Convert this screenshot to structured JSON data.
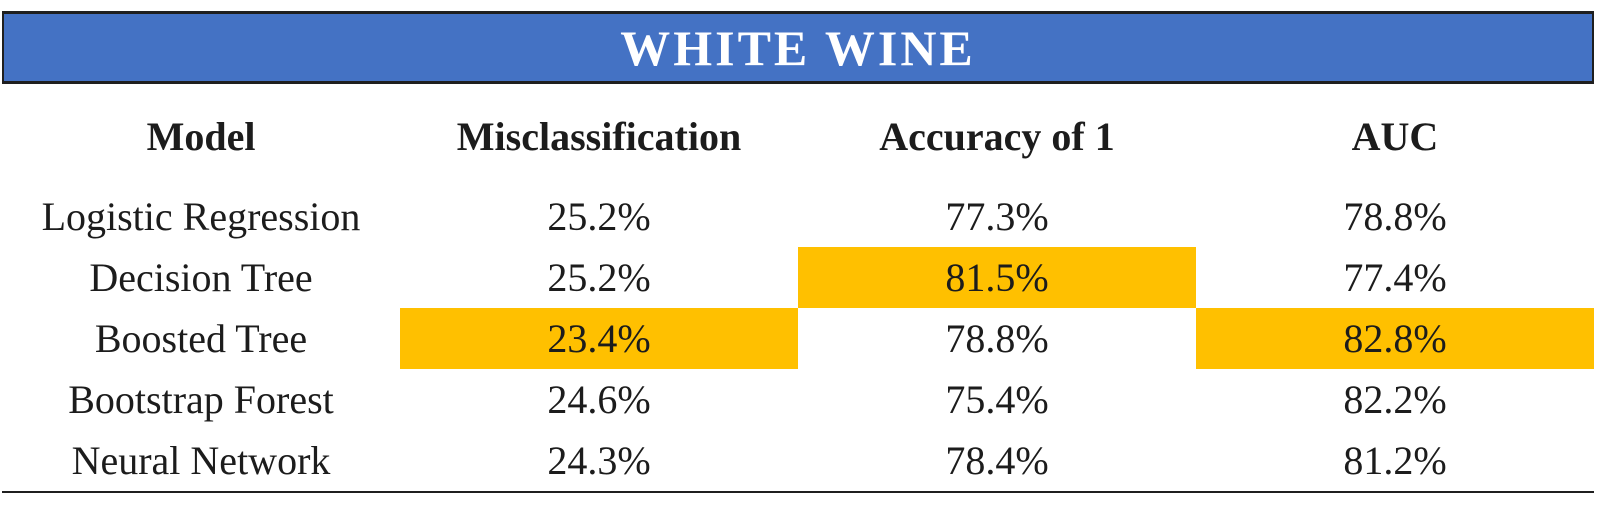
{
  "title": "WHITE WINE",
  "colors": {
    "title_bg": "#4472C4",
    "title_text": "#FFFFFF",
    "highlight": "#FFC000",
    "rule": "#1f1f1f",
    "text": "#1c1c1c"
  },
  "table": {
    "columns": [
      "Model",
      "Misclassification",
      "Accuracy of 1",
      "AUC"
    ],
    "rows": [
      {
        "model": "Logistic Regression",
        "misclassification": "25.2%",
        "accuracy_of_1": "77.3%",
        "auc": "78.8%",
        "highlights": []
      },
      {
        "model": "Decision Tree",
        "misclassification": "25.2%",
        "accuracy_of_1": "81.5%",
        "auc": "77.4%",
        "highlights": [
          "accuracy_of_1"
        ]
      },
      {
        "model": "Boosted Tree",
        "misclassification": "23.4%",
        "accuracy_of_1": "78.8%",
        "auc": "82.8%",
        "highlights": [
          "misclassification",
          "auc"
        ]
      },
      {
        "model": "Bootstrap Forest",
        "misclassification": "24.6%",
        "accuracy_of_1": "75.4%",
        "auc": "82.2%",
        "highlights": []
      },
      {
        "model": "Neural Network",
        "misclassification": "24.3%",
        "accuracy_of_1": "78.4%",
        "auc": "81.2%",
        "highlights": []
      }
    ]
  },
  "chart_data": {
    "type": "table",
    "title": "WHITE WINE",
    "columns": [
      "Model",
      "Misclassification",
      "Accuracy of 1",
      "AUC"
    ],
    "units": "percent",
    "rows": [
      [
        "Logistic Regression",
        25.2,
        77.3,
        78.8
      ],
      [
        "Decision Tree",
        25.2,
        81.5,
        77.4
      ],
      [
        "Boosted Tree",
        23.4,
        78.8,
        82.8
      ],
      [
        "Bootstrap Forest",
        24.6,
        75.4,
        82.2
      ],
      [
        "Neural Network",
        24.3,
        78.4,
        81.2
      ]
    ],
    "highlighted_cells": [
      {
        "row": "Decision Tree",
        "column": "Accuracy of 1",
        "value": 81.5
      },
      {
        "row": "Boosted Tree",
        "column": "Misclassification",
        "value": 23.4
      },
      {
        "row": "Boosted Tree",
        "column": "AUC",
        "value": 82.8
      }
    ],
    "layout_hints": {
      "title_banner": "blue bar with black rules above and below, white bold serif title",
      "highlight_color": "#FFC000",
      "bottom_rule": true,
      "grid": "no inner cell borders, all text centered"
    }
  }
}
